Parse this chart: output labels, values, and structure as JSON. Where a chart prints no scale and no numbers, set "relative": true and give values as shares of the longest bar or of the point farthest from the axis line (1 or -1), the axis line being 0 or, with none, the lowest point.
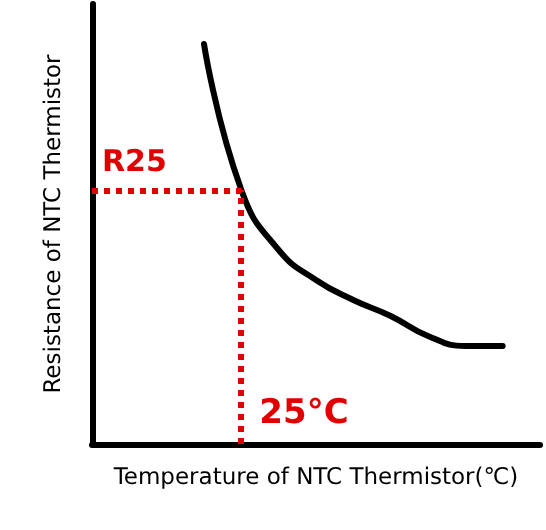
{
  "chart_data": {
    "type": "line",
    "relative": true,
    "xlabel": "Temperature of NTC Thermistor(℃)",
    "ylabel": "Resistance of NTC Thermistor",
    "categories": [
      null,
      null,
      null,
      null,
      null,
      null,
      null,
      null,
      null,
      null,
      null,
      null,
      null
    ],
    "series": [
      {
        "color": "#000000",
        "values": [
          null,
          null,
          null,
          1,
          0.635,
          0.485,
          0.41,
          0.36,
          0.32,
          0.27,
          0.245,
          0.245,
          null
        ]
      }
    ],
    "ref_lines": [
      {
        "axis": "y",
        "value": 0.635,
        "label": "R25",
        "color": "#e00000",
        "line_style": "dotted"
      }
    ],
    "annotations": [
      "25°C"
    ],
    "marker": "none",
    "line_style": "solid",
    "grid": false
  }
}
